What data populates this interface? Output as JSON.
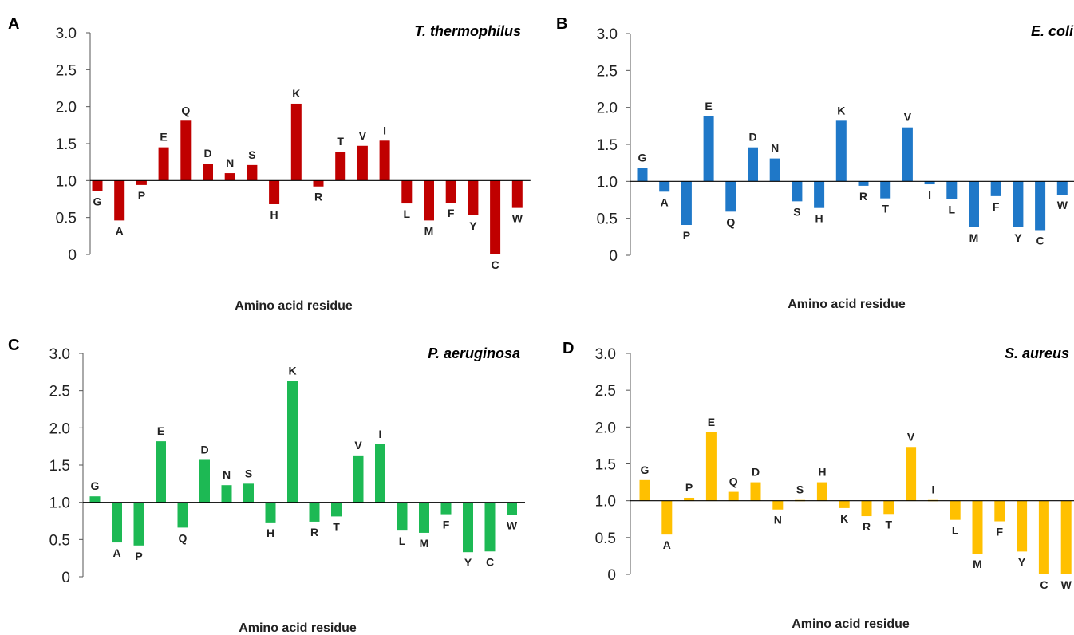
{
  "chart_data": [
    {
      "type": "bar",
      "panel": "A",
      "title": "T. thermophilus",
      "xlabel": "Amino acid residue",
      "ylabel": "",
      "baseline": 1.0,
      "ylim": [
        0,
        3.0
      ],
      "yticks": [
        "0",
        "0.5",
        "1.0",
        "1.5",
        "2.0",
        "2.5",
        "3.0"
      ],
      "color": "#C00000",
      "categories": [
        "G",
        "A",
        "P",
        "E",
        "Q",
        "D",
        "N",
        "S",
        "H",
        "K",
        "R",
        "T",
        "V",
        "I",
        "L",
        "M",
        "F",
        "Y",
        "C",
        "W"
      ],
      "values": [
        0.86,
        0.46,
        0.94,
        1.45,
        1.81,
        1.23,
        1.1,
        1.21,
        0.68,
        2.04,
        0.92,
        1.39,
        1.47,
        1.54,
        0.69,
        0.46,
        0.7,
        0.53,
        0.0,
        0.63
      ]
    },
    {
      "type": "bar",
      "panel": "B",
      "title": "E. coli",
      "xlabel": "Amino acid residue",
      "ylabel": "",
      "baseline": 1.0,
      "ylim": [
        0,
        3.0
      ],
      "yticks": [
        "0",
        "0.5",
        "1.0",
        "1.5",
        "2.0",
        "2.5",
        "3.0"
      ],
      "color": "#1F78C8",
      "categories": [
        "G",
        "A",
        "P",
        "E",
        "Q",
        "D",
        "N",
        "S",
        "H",
        "K",
        "R",
        "T",
        "V",
        "I",
        "L",
        "M",
        "F",
        "Y",
        "C",
        "W"
      ],
      "values": [
        1.18,
        0.86,
        0.41,
        1.88,
        0.59,
        1.46,
        1.31,
        0.73,
        0.64,
        1.82,
        0.94,
        0.77,
        1.73,
        0.96,
        0.76,
        0.38,
        0.8,
        0.38,
        0.34,
        0.82
      ]
    },
    {
      "type": "bar",
      "panel": "C",
      "title": "P. aeruginosa",
      "xlabel": "Amino acid residue",
      "ylabel": "",
      "baseline": 1.0,
      "ylim": [
        0,
        3.0
      ],
      "yticks": [
        "0",
        "0.5",
        "1.0",
        "1.5",
        "2.0",
        "2.5",
        "3.0"
      ],
      "color": "#1DB954",
      "categories": [
        "G",
        "A",
        "P",
        "E",
        "Q",
        "D",
        "N",
        "S",
        "H",
        "K",
        "R",
        "T",
        "V",
        "I",
        "L",
        "M",
        "F",
        "Y",
        "C",
        "W"
      ],
      "values": [
        1.08,
        0.46,
        0.42,
        1.82,
        0.66,
        1.57,
        1.23,
        1.25,
        0.73,
        2.63,
        0.74,
        0.81,
        1.63,
        1.78,
        0.62,
        0.59,
        0.84,
        0.33,
        0.34,
        0.83
      ]
    },
    {
      "type": "bar",
      "panel": "D",
      "title": "S. aureus",
      "xlabel": "Amino acid residue",
      "ylabel": "",
      "baseline": 1.0,
      "ylim": [
        0,
        3.0
      ],
      "yticks": [
        "0",
        "0.5",
        "1.0",
        "1.5",
        "2.0",
        "2.5",
        "3.0"
      ],
      "color": "#FFC000",
      "categories": [
        "G",
        "A",
        "P",
        "E",
        "Q",
        "D",
        "N",
        "S",
        "H",
        "K",
        "R",
        "T",
        "V",
        "I",
        "L",
        "M",
        "F",
        "Y",
        "C",
        "W"
      ],
      "values": [
        1.28,
        0.54,
        1.04,
        1.93,
        1.12,
        1.25,
        0.88,
        1.01,
        1.25,
        0.9,
        0.79,
        0.82,
        1.73,
        1.01,
        0.74,
        0.28,
        0.72,
        0.31,
        0.0,
        0.0
      ]
    }
  ]
}
